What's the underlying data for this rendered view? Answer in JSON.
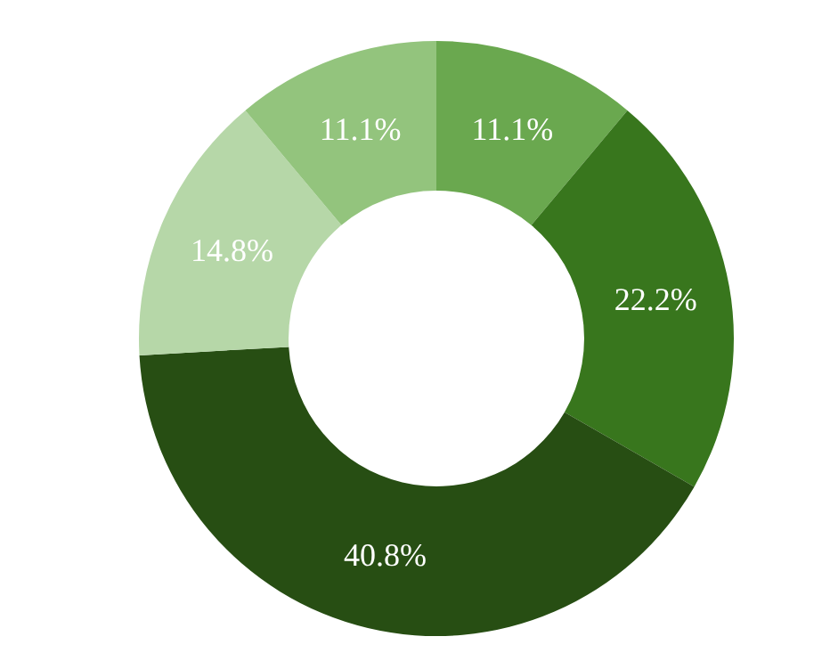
{
  "chart_data": {
    "type": "donut",
    "categories": [
      null,
      null,
      null,
      null,
      null
    ],
    "values": [
      11.1,
      22.2,
      40.8,
      14.8,
      11.1
    ],
    "colors": [
      "#6aa84f",
      "#38761d",
      "#274e13",
      "#b6d7a8",
      "#93c47d"
    ],
    "value_labels": [
      "11.1%",
      "22.2%",
      "40.8%",
      "14.8%",
      "11.1%"
    ]
  }
}
